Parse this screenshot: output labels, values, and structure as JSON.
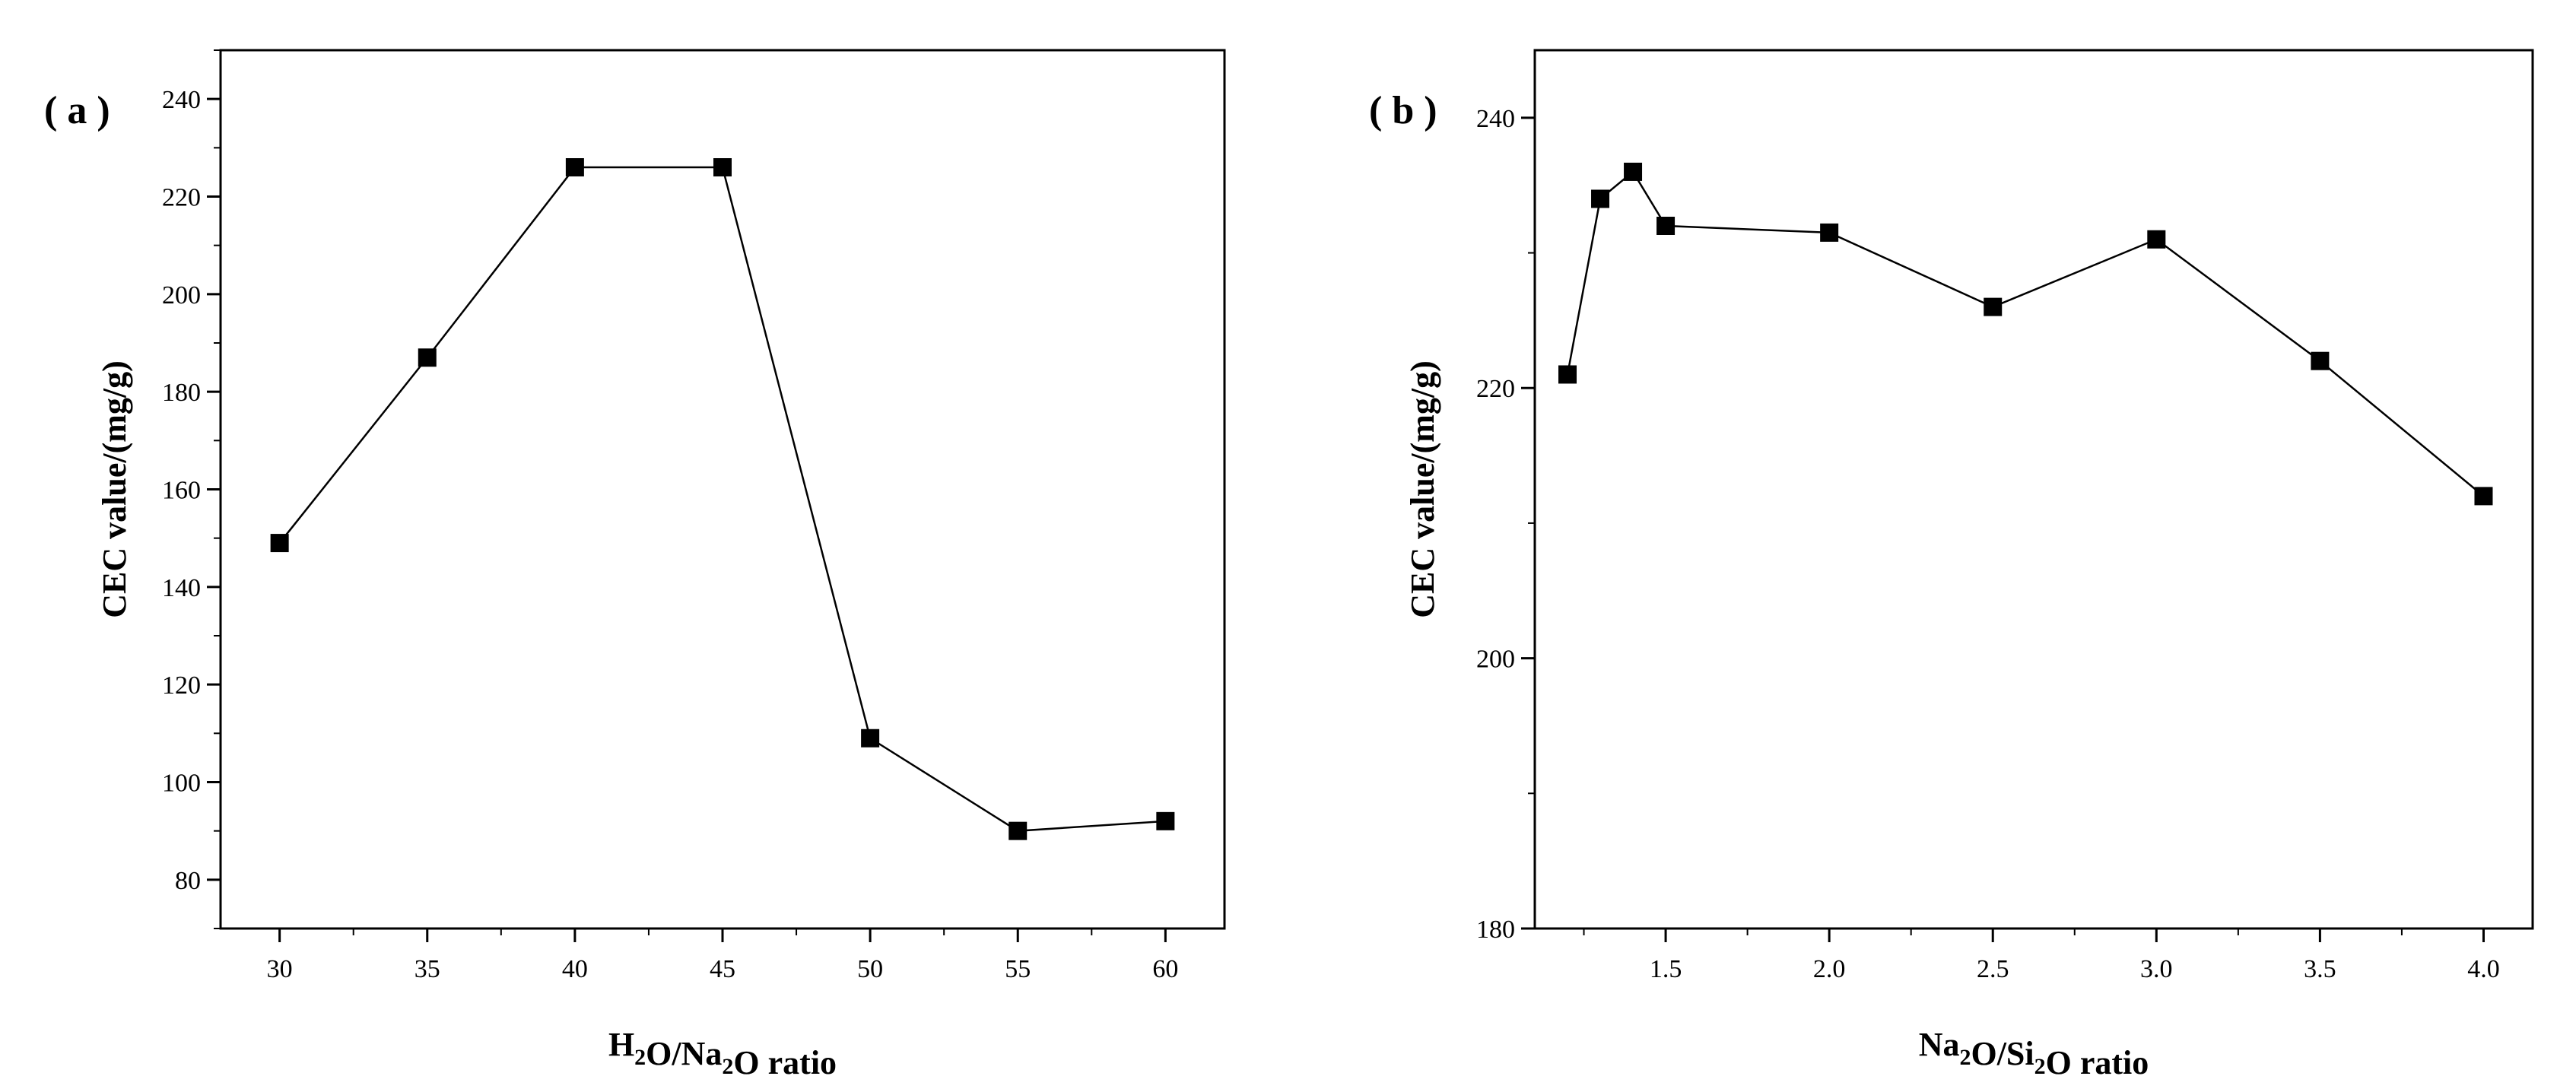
{
  "chart_data": [
    {
      "type": "line",
      "panel_label": "( a )",
      "title": "",
      "xlabel": {
        "parts": [
          [
            "H",
            false
          ],
          [
            "2",
            true
          ],
          [
            "O/Na",
            false
          ],
          [
            "2",
            true
          ],
          [
            "O ratio",
            false
          ]
        ]
      },
      "ylabel": "CEC value/(mg/g)",
      "xlim": [
        28,
        62
      ],
      "ylim": [
        70,
        250
      ],
      "xticks": [
        30,
        35,
        40,
        45,
        50,
        55,
        60
      ],
      "xtick_labels": [
        "30",
        "35",
        "40",
        "45",
        "50",
        "55",
        "60"
      ],
      "yticks": [
        80,
        100,
        120,
        140,
        160,
        180,
        200,
        220,
        240
      ],
      "ytick_labels": [
        "80",
        "100",
        "120",
        "140",
        "160",
        "180",
        "200",
        "220",
        "240"
      ],
      "x_minor_step": 2.5,
      "y_minor_step": 10,
      "marker": "square",
      "grid": false,
      "series": [
        {
          "name": "CEC",
          "x": [
            30,
            35,
            40,
            45,
            50,
            55,
            60
          ],
          "values": [
            149,
            187,
            226,
            226,
            109,
            90,
            92
          ]
        }
      ]
    },
    {
      "type": "line",
      "panel_label": "( b )",
      "title": "",
      "xlabel": {
        "parts": [
          [
            "Na",
            false
          ],
          [
            "2",
            true
          ],
          [
            "O/Si",
            false
          ],
          [
            "2",
            true
          ],
          [
            "O ratio",
            false
          ]
        ]
      },
      "ylabel": "CEC value/(mg/g)",
      "xlim": [
        1.1,
        4.15
      ],
      "ylim": [
        180,
        245
      ],
      "xticks": [
        1.5,
        2.0,
        2.5,
        3.0,
        3.5,
        4.0
      ],
      "xtick_labels": [
        "1.5",
        "2.0",
        "2.5",
        "3.0",
        "3.5",
        "4.0"
      ],
      "yticks": [
        180,
        200,
        220,
        240
      ],
      "ytick_labels": [
        "180",
        "200",
        "220",
        "240"
      ],
      "x_minor_step": 0.25,
      "y_minor_step": 10,
      "marker": "square",
      "grid": false,
      "series": [
        {
          "name": "CEC",
          "x": [
            1.2,
            1.3,
            1.4,
            1.5,
            2.0,
            2.5,
            3.0,
            3.5,
            4.0
          ],
          "values": [
            221,
            234,
            236,
            232,
            231.5,
            226,
            231,
            222,
            212
          ]
        }
      ]
    }
  ]
}
